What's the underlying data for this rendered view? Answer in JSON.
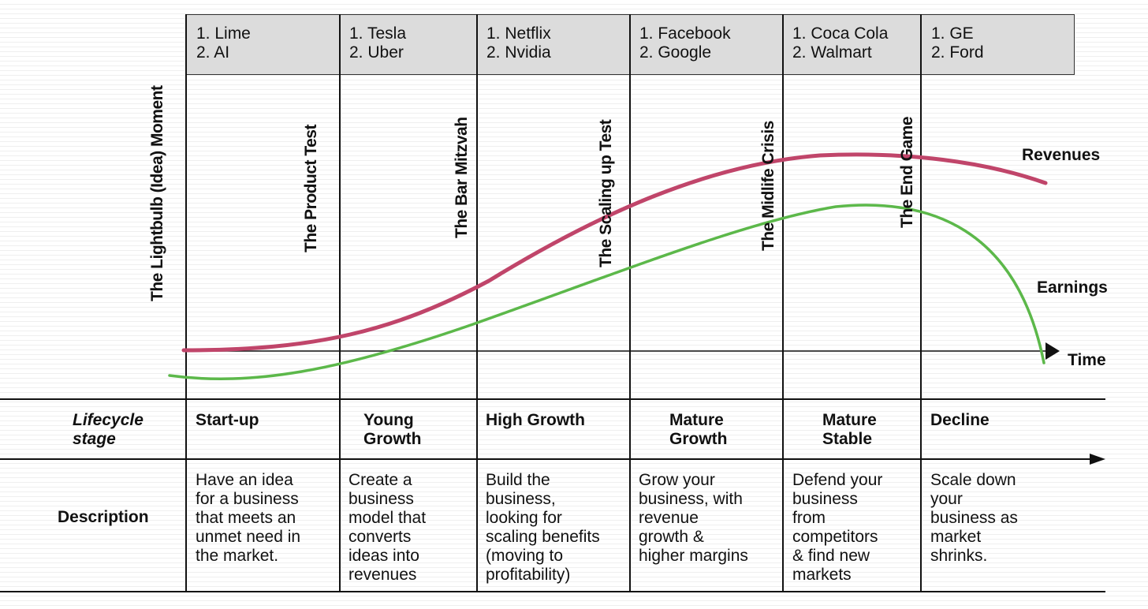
{
  "columns": [
    {
      "companies": [
        "1. Lime",
        "2. AI"
      ],
      "stage": [
        "Start-up"
      ],
      "description": [
        "Have an idea",
        "for a business",
        "that meets an",
        "unmet need in",
        "the market."
      ]
    },
    {
      "companies": [
        "1. Tesla",
        "2. Uber"
      ],
      "stage": [
        "Young",
        "Growth"
      ],
      "description": [
        "Create a",
        "business",
        "model that",
        "converts",
        "ideas into",
        "revenues"
      ]
    },
    {
      "companies": [
        "1. Netflix",
        "2. Nvidia"
      ],
      "stage": [
        "High Growth"
      ],
      "description": [
        "Build the",
        "business,",
        "looking for",
        "scaling benefits",
        "(moving to",
        "profitability)"
      ]
    },
    {
      "companies": [
        "1. Facebook",
        "2. Google"
      ],
      "stage": [
        "Mature",
        "Growth"
      ],
      "description": [
        "Grow your",
        "business, with",
        "revenue",
        "growth &",
        "higher margins"
      ]
    },
    {
      "companies": [
        "1. Coca Cola",
        "2. Walmart"
      ],
      "stage": [
        "Mature",
        "Stable"
      ],
      "description": [
        "Defend your",
        "business",
        "from",
        "competitors",
        "& find new",
        "markets"
      ]
    },
    {
      "companies": [
        "1. GE",
        "2. Ford"
      ],
      "stage": [
        "Decline"
      ],
      "description": [
        "Scale down",
        "your",
        "business as",
        "market",
        "shrinks."
      ]
    }
  ],
  "milestones": [
    "The Lightbulb (Idea) Moment",
    "The Product Test",
    "The Bar Mitzvah",
    "The Scaling up Test",
    "The Midlife Crisis",
    "The End Game"
  ],
  "rows": {
    "lifecycle_label": [
      "Lifecycle",
      "stage"
    ],
    "description_label": "Description"
  },
  "curves": {
    "revenues_label": "Revenues",
    "earnings_label": "Earnings",
    "time_label": "Time",
    "revenues_color": "#c0456a",
    "earnings_color": "#5cb84a"
  }
}
